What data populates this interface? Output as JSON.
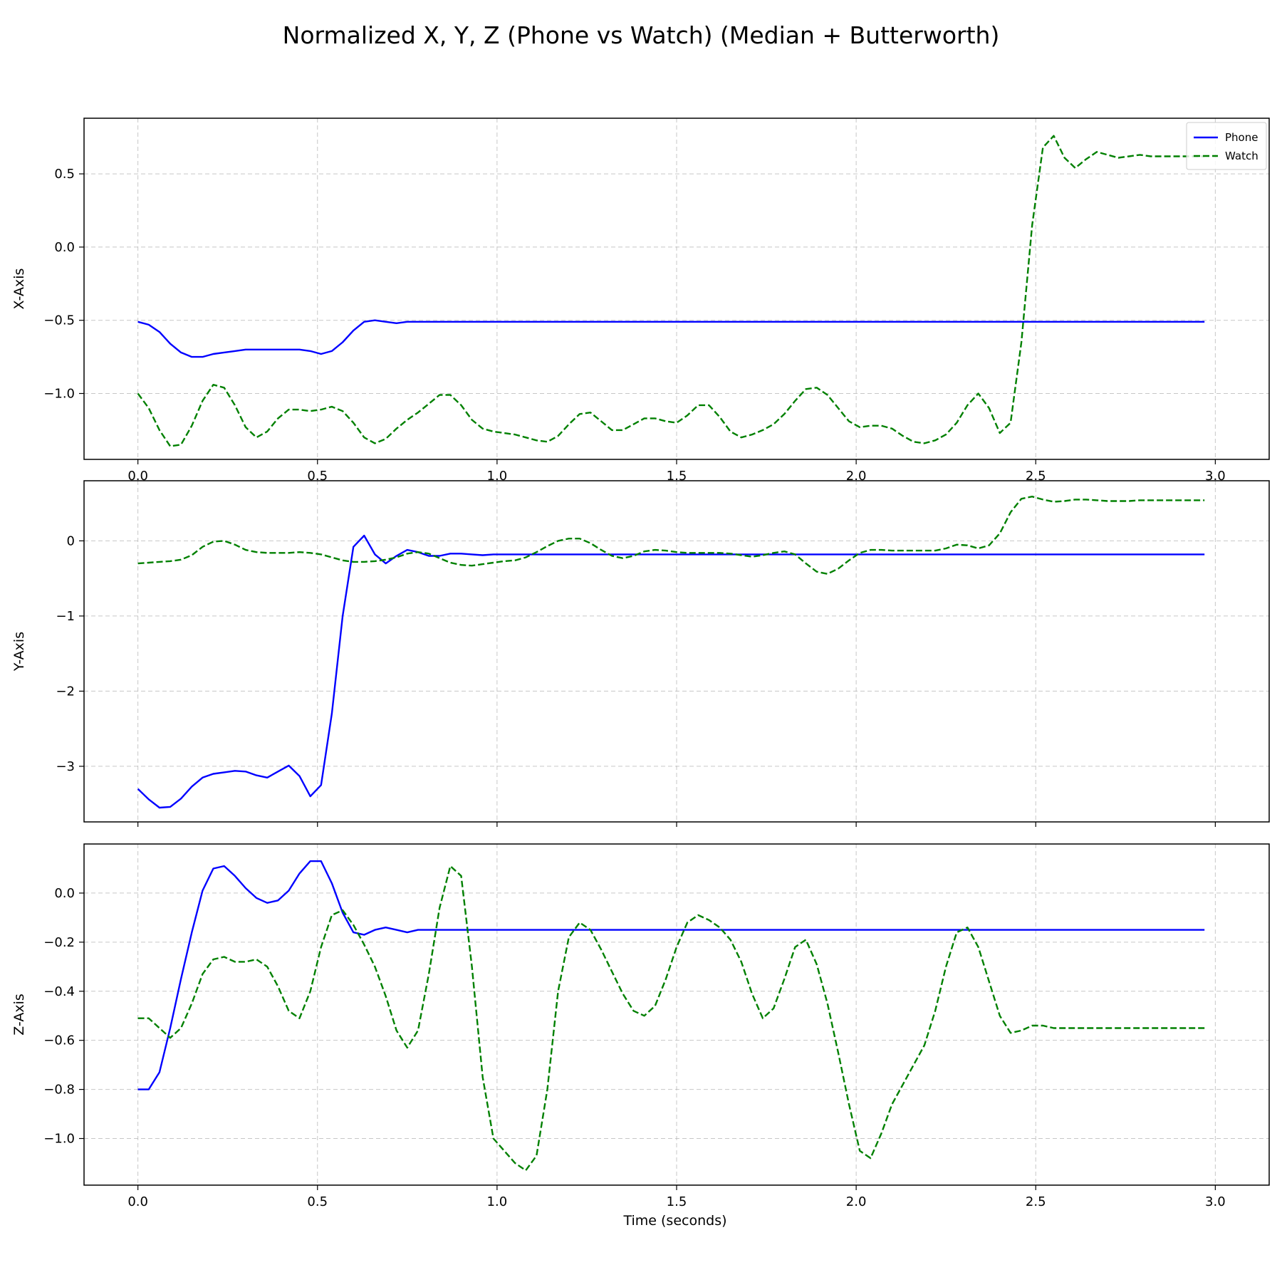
{
  "figure_title": "Normalized X, Y, Z (Phone vs Watch) (Median + Butterworth)",
  "xlabel": "Time (seconds)",
  "legend": {
    "placement": "top-right",
    "entries": [
      "Phone",
      "Watch"
    ]
  },
  "colors": {
    "Phone": "#0000ff",
    "Watch": "#008000"
  },
  "chart_data": [
    {
      "type": "line",
      "ylabel": "X-Axis",
      "xlim": [
        -0.15,
        3.15
      ],
      "ylim": [
        -1.45,
        0.88
      ],
      "xticks": [
        0.0,
        0.5,
        1.0,
        1.5,
        2.0,
        2.5,
        3.0
      ],
      "xtick_labels": [
        "0.0",
        "0.5",
        "1.0",
        "1.5",
        "2.0",
        "2.5",
        "3.0"
      ],
      "yticks": [
        0.5,
        0.0,
        -0.5,
        -1.0
      ],
      "ytick_labels": [
        "0.5",
        "0.0",
        "−0.5",
        "−1.0"
      ],
      "grid": true,
      "legend": true,
      "x": [
        0.0,
        0.03,
        0.06,
        0.09,
        0.12,
        0.15,
        0.18,
        0.21,
        0.24,
        0.27,
        0.3,
        0.33,
        0.36,
        0.39,
        0.42,
        0.45,
        0.48,
        0.51,
        0.54,
        0.57,
        0.6,
        0.63,
        0.66,
        0.69,
        0.72,
        0.75,
        0.78,
        0.81,
        0.84,
        0.87,
        0.9,
        0.93,
        0.96,
        0.99,
        1.02,
        1.05,
        1.08,
        1.11,
        1.14,
        1.17,
        1.2,
        1.23,
        1.26,
        1.29,
        1.32,
        1.35,
        1.38,
        1.41,
        1.44,
        1.47,
        1.5,
        1.53,
        1.56,
        1.59,
        1.62,
        1.65,
        1.68,
        1.71,
        1.74,
        1.77,
        1.8,
        1.83,
        1.86,
        1.89,
        1.92,
        1.95,
        1.98,
        2.01,
        2.04,
        2.07,
        2.1,
        2.13,
        2.16,
        2.19,
        2.22,
        2.25,
        2.28,
        2.31,
        2.34,
        2.37,
        2.4,
        2.43,
        2.46,
        2.49,
        2.52,
        2.55,
        2.58,
        2.61,
        2.64,
        2.67,
        2.7,
        2.73,
        2.76,
        2.79,
        2.82,
        2.85,
        2.88,
        2.91,
        2.94,
        2.97
      ],
      "series": [
        {
          "name": "Phone",
          "style": "solid",
          "values": [
            -0.51,
            -0.53,
            -0.58,
            -0.66,
            -0.72,
            -0.75,
            -0.75,
            -0.73,
            -0.72,
            -0.71,
            -0.7,
            -0.7,
            -0.7,
            -0.7,
            -0.7,
            -0.7,
            -0.71,
            -0.73,
            -0.71,
            -0.65,
            -0.57,
            -0.51,
            -0.5,
            -0.51,
            -0.52,
            -0.51,
            -0.51,
            -0.51,
            -0.51,
            -0.51,
            -0.51,
            -0.51,
            -0.51,
            -0.51,
            -0.51,
            -0.51,
            -0.51,
            -0.51,
            -0.51,
            -0.51,
            -0.51,
            -0.51,
            -0.51,
            -0.51,
            -0.51,
            -0.51,
            -0.51,
            -0.51,
            -0.51,
            -0.51,
            -0.51,
            -0.51,
            -0.51,
            -0.51,
            -0.51,
            -0.51,
            -0.51,
            -0.51,
            -0.51,
            -0.51,
            -0.51,
            -0.51,
            -0.51,
            -0.51,
            -0.51,
            -0.51,
            -0.51,
            -0.51,
            -0.51,
            -0.51,
            -0.51,
            -0.51,
            -0.51,
            -0.51,
            -0.51,
            -0.51,
            -0.51,
            -0.51,
            -0.51,
            -0.51,
            -0.51,
            -0.51,
            -0.51,
            -0.51,
            -0.51,
            -0.51,
            -0.51,
            -0.51,
            -0.51,
            -0.51,
            -0.51,
            -0.51,
            -0.51,
            -0.51,
            -0.51,
            -0.51,
            -0.51,
            -0.51,
            -0.51,
            -0.51
          ]
        },
        {
          "name": "Watch",
          "style": "dashed",
          "values": [
            -1.0,
            -1.1,
            -1.25,
            -1.36,
            -1.35,
            -1.22,
            -1.05,
            -0.94,
            -0.96,
            -1.08,
            -1.23,
            -1.3,
            -1.26,
            -1.17,
            -1.11,
            -1.11,
            -1.12,
            -1.11,
            -1.09,
            -1.12,
            -1.2,
            -1.3,
            -1.34,
            -1.31,
            -1.24,
            -1.18,
            -1.13,
            -1.07,
            -1.01,
            -1.01,
            -1.08,
            -1.18,
            -1.24,
            -1.26,
            -1.27,
            -1.28,
            -1.3,
            -1.32,
            -1.33,
            -1.29,
            -1.21,
            -1.14,
            -1.13,
            -1.19,
            -1.25,
            -1.25,
            -1.21,
            -1.17,
            -1.17,
            -1.19,
            -1.2,
            -1.15,
            -1.08,
            -1.08,
            -1.16,
            -1.26,
            -1.3,
            -1.28,
            -1.25,
            -1.21,
            -1.14,
            -1.05,
            -0.97,
            -0.96,
            -1.01,
            -1.1,
            -1.19,
            -1.23,
            -1.22,
            -1.22,
            -1.24,
            -1.29,
            -1.33,
            -1.34,
            -1.32,
            -1.28,
            -1.2,
            -1.08,
            -1.0,
            -1.1,
            -1.27,
            -1.2,
            -0.65,
            0.15,
            0.68,
            0.76,
            0.61,
            0.54,
            0.6,
            0.65,
            0.63,
            0.61,
            0.62,
            0.63,
            0.62,
            0.62,
            0.62,
            0.62,
            0.62,
            0.62
          ]
        }
      ]
    },
    {
      "type": "line",
      "ylabel": "Y-Axis",
      "xlim": [
        -0.15,
        3.15
      ],
      "ylim": [
        -3.74,
        0.8
      ],
      "xticks": [
        0.0,
        0.5,
        1.0,
        1.5,
        2.0,
        2.5,
        3.0
      ],
      "xtick_labels": [
        "",
        "",
        "",
        "",
        "",
        "",
        ""
      ],
      "yticks": [
        0,
        -1,
        -2,
        -3
      ],
      "ytick_labels": [
        "0",
        "−1",
        "−2",
        "−3"
      ],
      "grid": true,
      "legend": false,
      "x": [
        0.0,
        0.03,
        0.06,
        0.09,
        0.12,
        0.15,
        0.18,
        0.21,
        0.24,
        0.27,
        0.3,
        0.33,
        0.36,
        0.39,
        0.42,
        0.45,
        0.48,
        0.51,
        0.54,
        0.57,
        0.6,
        0.63,
        0.66,
        0.69,
        0.72,
        0.75,
        0.78,
        0.81,
        0.84,
        0.87,
        0.9,
        0.93,
        0.96,
        0.99,
        1.02,
        1.05,
        1.08,
        1.11,
        1.14,
        1.17,
        1.2,
        1.23,
        1.26,
        1.29,
        1.32,
        1.35,
        1.38,
        1.41,
        1.44,
        1.47,
        1.5,
        1.53,
        1.56,
        1.59,
        1.62,
        1.65,
        1.68,
        1.71,
        1.74,
        1.77,
        1.8,
        1.83,
        1.86,
        1.89,
        1.92,
        1.95,
        1.98,
        2.01,
        2.04,
        2.07,
        2.1,
        2.13,
        2.16,
        2.19,
        2.22,
        2.25,
        2.28,
        2.31,
        2.34,
        2.37,
        2.4,
        2.43,
        2.46,
        2.49,
        2.52,
        2.55,
        2.58,
        2.61,
        2.64,
        2.67,
        2.7,
        2.73,
        2.76,
        2.79,
        2.82,
        2.85,
        2.88,
        2.91,
        2.94,
        2.97
      ],
      "series": [
        {
          "name": "Phone",
          "style": "solid",
          "values": [
            -3.3,
            -3.44,
            -3.55,
            -3.54,
            -3.43,
            -3.27,
            -3.15,
            -3.1,
            -3.08,
            -3.06,
            -3.07,
            -3.12,
            -3.15,
            -3.07,
            -2.99,
            -3.13,
            -3.4,
            -3.25,
            -2.3,
            -1.0,
            -0.08,
            0.07,
            -0.18,
            -0.3,
            -0.2,
            -0.12,
            -0.15,
            -0.2,
            -0.2,
            -0.17,
            -0.17,
            -0.18,
            -0.19,
            -0.18,
            -0.18,
            -0.18,
            -0.18,
            -0.18,
            -0.18,
            -0.18,
            -0.18,
            -0.18,
            -0.18,
            -0.18,
            -0.18,
            -0.18,
            -0.18,
            -0.18,
            -0.18,
            -0.18,
            -0.18,
            -0.18,
            -0.18,
            -0.18,
            -0.18,
            -0.18,
            -0.18,
            -0.18,
            -0.18,
            -0.18,
            -0.18,
            -0.18,
            -0.18,
            -0.18,
            -0.18,
            -0.18,
            -0.18,
            -0.18,
            -0.18,
            -0.18,
            -0.18,
            -0.18,
            -0.18,
            -0.18,
            -0.18,
            -0.18,
            -0.18,
            -0.18,
            -0.18,
            -0.18,
            -0.18,
            -0.18,
            -0.18,
            -0.18,
            -0.18,
            -0.18,
            -0.18,
            -0.18,
            -0.18,
            -0.18,
            -0.18,
            -0.18,
            -0.18,
            -0.18,
            -0.18,
            -0.18,
            -0.18,
            -0.18,
            -0.18,
            -0.18
          ]
        },
        {
          "name": "Watch",
          "style": "dashed",
          "values": [
            -0.3,
            -0.29,
            -0.28,
            -0.27,
            -0.25,
            -0.19,
            -0.08,
            -0.01,
            0.0,
            -0.05,
            -0.12,
            -0.15,
            -0.16,
            -0.16,
            -0.16,
            -0.15,
            -0.16,
            -0.18,
            -0.22,
            -0.26,
            -0.28,
            -0.28,
            -0.27,
            -0.25,
            -0.22,
            -0.17,
            -0.15,
            -0.17,
            -0.23,
            -0.29,
            -0.32,
            -0.33,
            -0.31,
            -0.29,
            -0.27,
            -0.26,
            -0.22,
            -0.15,
            -0.07,
            0.0,
            0.03,
            0.03,
            -0.03,
            -0.12,
            -0.2,
            -0.23,
            -0.2,
            -0.14,
            -0.12,
            -0.13,
            -0.15,
            -0.16,
            -0.16,
            -0.16,
            -0.16,
            -0.17,
            -0.19,
            -0.21,
            -0.19,
            -0.16,
            -0.14,
            -0.18,
            -0.3,
            -0.41,
            -0.44,
            -0.37,
            -0.26,
            -0.16,
            -0.12,
            -0.12,
            -0.13,
            -0.13,
            -0.13,
            -0.13,
            -0.13,
            -0.1,
            -0.05,
            -0.06,
            -0.1,
            -0.06,
            0.1,
            0.38,
            0.56,
            0.59,
            0.55,
            0.52,
            0.53,
            0.55,
            0.55,
            0.54,
            0.53,
            0.53,
            0.53,
            0.54,
            0.54,
            0.54,
            0.54,
            0.54,
            0.54,
            0.54
          ]
        }
      ]
    },
    {
      "type": "line",
      "ylabel": "Z-Axis",
      "xlim": [
        -0.15,
        3.15
      ],
      "ylim": [
        -1.19,
        0.2
      ],
      "xticks": [
        0.0,
        0.5,
        1.0,
        1.5,
        2.0,
        2.5,
        3.0
      ],
      "xtick_labels": [
        "0.0",
        "0.5",
        "1.0",
        "1.5",
        "2.0",
        "2.5",
        "3.0"
      ],
      "yticks": [
        0.0,
        -0.2,
        -0.4,
        -0.6,
        -0.8,
        -1.0
      ],
      "ytick_labels": [
        "0.0",
        "−0.2",
        "−0.4",
        "−0.6",
        "−0.8",
        "−1.0"
      ],
      "grid": true,
      "legend": false,
      "x": [
        0.0,
        0.03,
        0.06,
        0.09,
        0.12,
        0.15,
        0.18,
        0.21,
        0.24,
        0.27,
        0.3,
        0.33,
        0.36,
        0.39,
        0.42,
        0.45,
        0.48,
        0.51,
        0.54,
        0.57,
        0.6,
        0.63,
        0.66,
        0.69,
        0.72,
        0.75,
        0.78,
        0.81,
        0.84,
        0.87,
        0.9,
        0.93,
        0.96,
        0.99,
        1.02,
        1.05,
        1.08,
        1.11,
        1.14,
        1.17,
        1.2,
        1.23,
        1.26,
        1.29,
        1.32,
        1.35,
        1.38,
        1.41,
        1.44,
        1.47,
        1.5,
        1.53,
        1.56,
        1.59,
        1.62,
        1.65,
        1.68,
        1.71,
        1.74,
        1.77,
        1.8,
        1.83,
        1.86,
        1.89,
        1.92,
        1.95,
        1.98,
        2.01,
        2.04,
        2.07,
        2.1,
        2.13,
        2.16,
        2.19,
        2.22,
        2.25,
        2.28,
        2.31,
        2.34,
        2.37,
        2.4,
        2.43,
        2.46,
        2.49,
        2.52,
        2.55,
        2.58,
        2.61,
        2.64,
        2.67,
        2.7,
        2.73,
        2.76,
        2.79,
        2.82,
        2.85,
        2.88,
        2.91,
        2.94,
        2.97
      ],
      "series": [
        {
          "name": "Phone",
          "style": "solid",
          "values": [
            -0.8,
            -0.8,
            -0.73,
            -0.55,
            -0.35,
            -0.16,
            0.01,
            0.1,
            0.11,
            0.07,
            0.02,
            -0.02,
            -0.04,
            -0.03,
            0.01,
            0.08,
            0.13,
            0.13,
            0.04,
            -0.08,
            -0.16,
            -0.17,
            -0.15,
            -0.14,
            -0.15,
            -0.16,
            -0.15,
            -0.15,
            -0.15,
            -0.15,
            -0.15,
            -0.15,
            -0.15,
            -0.15,
            -0.15,
            -0.15,
            -0.15,
            -0.15,
            -0.15,
            -0.15,
            -0.15,
            -0.15,
            -0.15,
            -0.15,
            -0.15,
            -0.15,
            -0.15,
            -0.15,
            -0.15,
            -0.15,
            -0.15,
            -0.15,
            -0.15,
            -0.15,
            -0.15,
            -0.15,
            -0.15,
            -0.15,
            -0.15,
            -0.15,
            -0.15,
            -0.15,
            -0.15,
            -0.15,
            -0.15,
            -0.15,
            -0.15,
            -0.15,
            -0.15,
            -0.15,
            -0.15,
            -0.15,
            -0.15,
            -0.15,
            -0.15,
            -0.15,
            -0.15,
            -0.15,
            -0.15,
            -0.15,
            -0.15,
            -0.15,
            -0.15,
            -0.15,
            -0.15,
            -0.15,
            -0.15,
            -0.15,
            -0.15,
            -0.15,
            -0.15,
            -0.15,
            -0.15,
            -0.15,
            -0.15,
            -0.15,
            -0.15,
            -0.15,
            -0.15,
            -0.15
          ]
        },
        {
          "name": "Watch",
          "style": "dashed",
          "values": [
            -0.51,
            -0.51,
            -0.55,
            -0.59,
            -0.55,
            -0.45,
            -0.33,
            -0.27,
            -0.26,
            -0.28,
            -0.28,
            -0.27,
            -0.3,
            -0.38,
            -0.48,
            -0.51,
            -0.4,
            -0.22,
            -0.09,
            -0.07,
            -0.13,
            -0.21,
            -0.3,
            -0.42,
            -0.56,
            -0.63,
            -0.56,
            -0.33,
            -0.06,
            0.11,
            0.07,
            -0.3,
            -0.75,
            -1.0,
            -1.05,
            -1.1,
            -1.13,
            -1.07,
            -0.8,
            -0.4,
            -0.18,
            -0.12,
            -0.15,
            -0.23,
            -0.32,
            -0.41,
            -0.48,
            -0.5,
            -0.46,
            -0.35,
            -0.22,
            -0.12,
            -0.09,
            -0.11,
            -0.14,
            -0.19,
            -0.28,
            -0.41,
            -0.51,
            -0.47,
            -0.35,
            -0.22,
            -0.19,
            -0.29,
            -0.45,
            -0.65,
            -0.86,
            -1.05,
            -1.08,
            -0.98,
            -0.86,
            -0.78,
            -0.7,
            -0.62,
            -0.48,
            -0.3,
            -0.16,
            -0.14,
            -0.22,
            -0.36,
            -0.5,
            -0.57,
            -0.56,
            -0.54,
            -0.54,
            -0.55,
            -0.55,
            -0.55,
            -0.55,
            -0.55,
            -0.55,
            -0.55,
            -0.55,
            -0.55,
            -0.55,
            -0.55,
            -0.55,
            -0.55,
            -0.55,
            -0.55
          ]
        }
      ]
    }
  ]
}
